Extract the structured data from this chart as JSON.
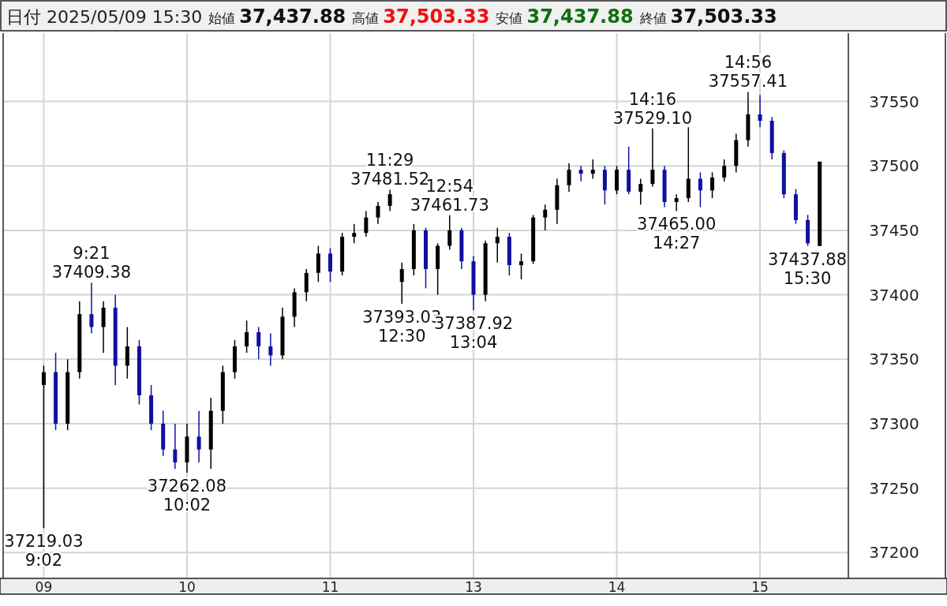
{
  "chart_data": {
    "type": "candlestick",
    "title": "日付 2025/05/09 15:30",
    "annotations": [
      "始値 37,437.88",
      "高値 37,503.33",
      "安値 37,437.88",
      "終値 37,503.33",
      {
        "text": "9:21\n37409.38",
        "y": 37409.38
      },
      {
        "text": "37219.03\n9:02",
        "y": 37219.03
      },
      {
        "text": "37262.08\n10:02",
        "y": 37262.08
      },
      {
        "text": "11:29\n37481.52",
        "y": 37481.52
      },
      {
        "text": "37393.03\n12:30",
        "y": 37393.03
      },
      {
        "text": "12:54\n37461.73",
        "y": 37461.73
      },
      {
        "text": "37387.92\n13:04",
        "y": 37387.92
      },
      {
        "text": "14:16\n37529.10",
        "y": 37529.1
      },
      {
        "text": "37465.00\n14:27",
        "y": 37465.0
      },
      {
        "text": "14:56\n37557.41",
        "y": 37557.41
      },
      {
        "text": "37437.88\n15:30",
        "y": 37437.88
      }
    ],
    "categories": [
      "09",
      null,
      null,
      null,
      null,
      null,
      null,
      null,
      null,
      null,
      null,
      null,
      "10",
      null,
      null,
      null,
      null,
      null,
      null,
      null,
      null,
      null,
      null,
      null,
      "11",
      null,
      null,
      null,
      null,
      null,
      null,
      null,
      null,
      null,
      null,
      null,
      "13",
      null,
      null,
      null,
      null,
      null,
      null,
      null,
      null,
      null,
      null,
      null,
      "14",
      null,
      null,
      null,
      null,
      null,
      null,
      null,
      null,
      null,
      null,
      null,
      "15",
      null,
      null,
      null,
      null,
      null
    ],
    "ohlc": [
      [
        37330,
        37345,
        37219.03,
        37340
      ],
      [
        37340,
        37355,
        37295,
        37300
      ],
      [
        37300,
        37350,
        37295,
        37340
      ],
      [
        37340,
        37395,
        37335,
        37385
      ],
      [
        37385,
        37409.38,
        37370,
        37375
      ],
      [
        37375,
        37395,
        37355,
        37390
      ],
      [
        37390,
        37400,
        37330,
        37345
      ],
      [
        37345,
        37375,
        37335,
        37360
      ],
      [
        37360,
        37365,
        37315,
        37322
      ],
      [
        37322,
        37330,
        37295,
        37300
      ],
      [
        37300,
        37310,
        37275,
        37280
      ],
      [
        37280,
        37300,
        37265,
        37270
      ],
      [
        37270,
        37300,
        37262.08,
        37290
      ],
      [
        37290,
        37310,
        37270,
        37280
      ],
      [
        37280,
        37320,
        37265,
        37310
      ],
      [
        37310,
        37345,
        37300,
        37340
      ],
      [
        37340,
        37365,
        37335,
        37360
      ],
      [
        37360,
        37380,
        37355,
        37371
      ],
      [
        37371,
        37375,
        37350,
        37360
      ],
      [
        37360,
        37370,
        37345,
        37353
      ],
      [
        37353,
        37390,
        37350,
        37383
      ],
      [
        37383,
        37405,
        37375,
        37402
      ],
      [
        37402,
        37420,
        37395,
        37417
      ],
      [
        37417,
        37438,
        37410,
        37432
      ],
      [
        37432,
        37436,
        37410,
        37418
      ],
      [
        37418,
        37448,
        37415,
        37445
      ],
      [
        37445,
        37455,
        37440,
        37448
      ],
      [
        37448,
        37465,
        37445,
        37460
      ],
      [
        37460,
        37472,
        37455,
        37469
      ],
      [
        37469,
        37481.52,
        37465,
        37478
      ],
      [
        37410,
        37425,
        37393.03,
        37420
      ],
      [
        37420,
        37455,
        37415,
        37450
      ],
      [
        37450,
        37452,
        37405,
        37420
      ],
      [
        37420,
        37440,
        37400,
        37438
      ],
      [
        37438,
        37461.73,
        37435,
        37450
      ],
      [
        37450,
        37452,
        37420,
        37426
      ],
      [
        37426,
        37430,
        37387.92,
        37400
      ],
      [
        37400,
        37442,
        37395,
        37440
      ],
      [
        37440,
        37452,
        37425,
        37445
      ],
      [
        37445,
        37448,
        37415,
        37423
      ],
      [
        37423,
        37432,
        37412,
        37426
      ],
      [
        37426,
        37462,
        37424,
        37460
      ],
      [
        37460,
        37470,
        37450,
        37466
      ],
      [
        37466,
        37490,
        37455,
        37485
      ],
      [
        37485,
        37502,
        37480,
        37497
      ],
      [
        37497,
        37500,
        37488,
        37494
      ],
      [
        37494,
        37505,
        37490,
        37497
      ],
      [
        37497,
        37500,
        37470,
        37481
      ],
      [
        37481,
        37500,
        37478,
        37497
      ],
      [
        37497,
        37515,
        37478,
        37480
      ],
      [
        37480,
        37490,
        37470,
        37486
      ],
      [
        37486,
        37529.1,
        37484,
        37497
      ],
      [
        37497,
        37500,
        37468,
        37472
      ],
      [
        37472,
        37478,
        37465.0,
        37475
      ],
      [
        37475,
        37530,
        37472,
        37490
      ],
      [
        37490,
        37495,
        37468,
        37481
      ],
      [
        37481,
        37495,
        37475,
        37491
      ],
      [
        37491,
        37505,
        37488,
        37500
      ],
      [
        37500,
        37525,
        37495,
        37520
      ],
      [
        37520,
        37557.41,
        37515,
        37540
      ],
      [
        37540,
        37555,
        37530,
        37535
      ],
      [
        37535,
        37538,
        37505,
        37510
      ],
      [
        37510,
        37512,
        37475,
        37478
      ],
      [
        37478,
        37482,
        37455,
        37458
      ],
      [
        37458,
        37462,
        37437.88,
        37440
      ],
      [
        37437.88,
        37503.33,
        37437.88,
        37503.33
      ]
    ],
    "ylim": [
      37180,
      37603
    ],
    "yticks": [
      37200,
      37250,
      37300,
      37350,
      37400,
      37450,
      37500,
      37550
    ],
    "grid": true
  }
}
